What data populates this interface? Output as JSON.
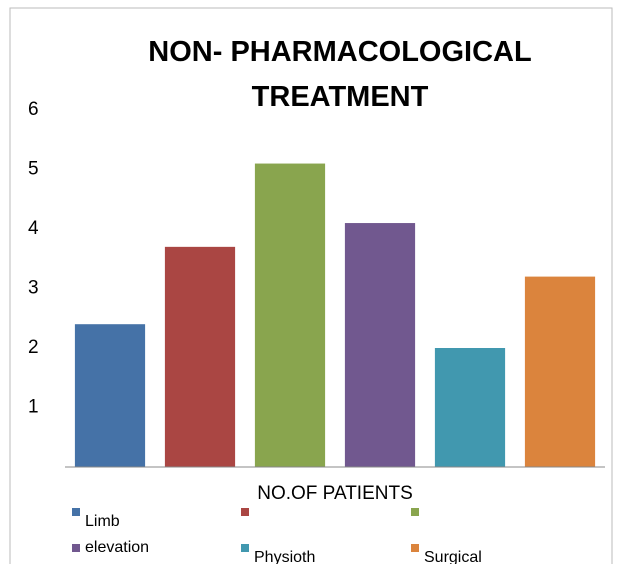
{
  "chart_data": {
    "type": "bar",
    "title": "NON- PHARMACOLOGICAL TREATMENT",
    "x_label": "NO.OF PATIENTS",
    "categories": [
      "Limb elevation",
      null,
      null,
      null,
      "Physioth",
      "Surgical"
    ],
    "values": [
      2.4,
      3.7,
      5.1,
      4.1,
      2,
      3.2
    ],
    "colors": [
      "#4572a7",
      "#aa4643",
      "#89a54e",
      "#71588f",
      "#4198af",
      "#db843d"
    ],
    "ylim": [
      0,
      6
    ],
    "yticks": [
      1,
      2,
      3,
      4,
      5,
      6
    ],
    "grid": false,
    "legend": "bottom"
  }
}
